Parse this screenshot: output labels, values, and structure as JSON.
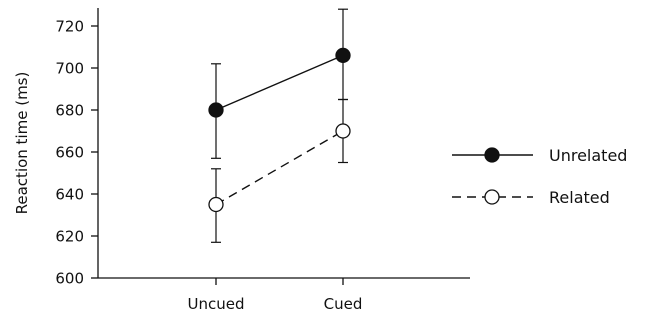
{
  "chart_data": {
    "type": "line",
    "xlabel": "",
    "ylabel": "Reaction time (ms)",
    "ylim": [
      600,
      730
    ],
    "yticks": [
      600,
      620,
      640,
      660,
      680,
      700,
      720
    ],
    "categories": [
      "Uncued",
      "Cued"
    ],
    "grid": false,
    "legend_position": "right",
    "series": [
      {
        "name": "Unrelated",
        "values": [
          680,
          706
        ],
        "error": [
          [
            657,
            702
          ],
          [
            685,
            728
          ]
        ],
        "marker": "filled-circle",
        "line_style": "solid",
        "color": "#111111"
      },
      {
        "name": "Related",
        "values": [
          635,
          670
        ],
        "error": [
          [
            617,
            652
          ],
          [
            655,
            685
          ]
        ],
        "marker": "open-circle",
        "line_style": "dashed",
        "color": "#111111"
      }
    ]
  }
}
